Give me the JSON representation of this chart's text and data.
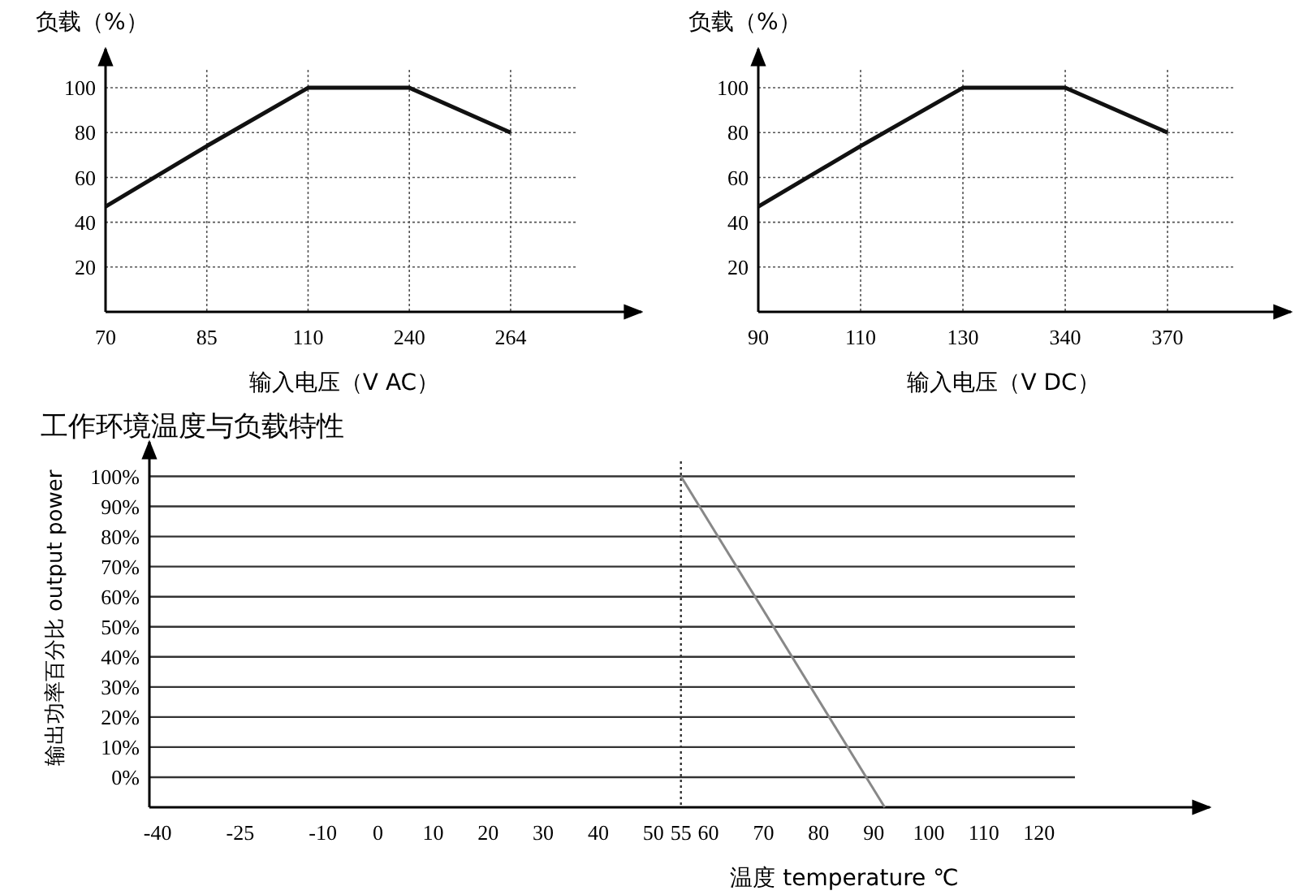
{
  "chart_data": [
    {
      "type": "line",
      "ylabel": "负载（%）",
      "xlabel": "输入电压（V AC）",
      "categories": [
        "70",
        "85",
        "110",
        "240",
        "264"
      ],
      "series": [
        {
          "color": "#111111",
          "values": [
            47,
            74,
            100,
            100,
            80
          ]
        }
      ],
      "ylim": [
        0,
        108
      ],
      "yticks": [
        20,
        40,
        60,
        80,
        100
      ],
      "grid": true
    },
    {
      "type": "line",
      "ylabel": "负载（%）",
      "xlabel": "输入电压（V DC）",
      "categories": [
        "90",
        "110",
        "130",
        "340",
        "370"
      ],
      "series": [
        {
          "color": "#111111",
          "values": [
            47,
            74,
            100,
            100,
            80
          ]
        }
      ],
      "ylim": [
        0,
        108
      ],
      "yticks": [
        20,
        40,
        60,
        80,
        100
      ],
      "grid": true
    },
    {
      "type": "line",
      "title": "工作环境温度与负载特性",
      "ylabel": "输出功率百分比 output power",
      "xlabel": "温度 temperature ℃",
      "series": [
        {
          "color": "#888888",
          "x": [
            55,
            92
          ],
          "values": [
            100,
            -10
          ]
        }
      ],
      "xlim": [
        -41.5,
        151
      ],
      "xticks": [
        -40,
        -25,
        -10,
        0,
        10,
        20,
        30,
        40,
        50,
        55,
        60,
        70,
        80,
        90,
        100,
        110,
        120
      ],
      "ylim": [
        -10,
        105
      ],
      "yticks": [
        {
          "value": 0,
          "label": "0%"
        },
        {
          "value": 10,
          "label": "10%"
        },
        {
          "value": 20,
          "label": "20%"
        },
        {
          "value": 30,
          "label": "30%"
        },
        {
          "value": 40,
          "label": "40%"
        },
        {
          "value": 50,
          "label": "50%"
        },
        {
          "value": 60,
          "label": "60%"
        },
        {
          "value": 70,
          "label": "70%"
        },
        {
          "value": 80,
          "label": "80%"
        },
        {
          "value": 90,
          "label": "90%"
        },
        {
          "value": 100,
          "label": "100%"
        }
      ],
      "grid": "y",
      "ref_lines": [
        {
          "axis": "x",
          "value": 55,
          "color": "#333333",
          "line_style": "dotted"
        }
      ]
    }
  ]
}
